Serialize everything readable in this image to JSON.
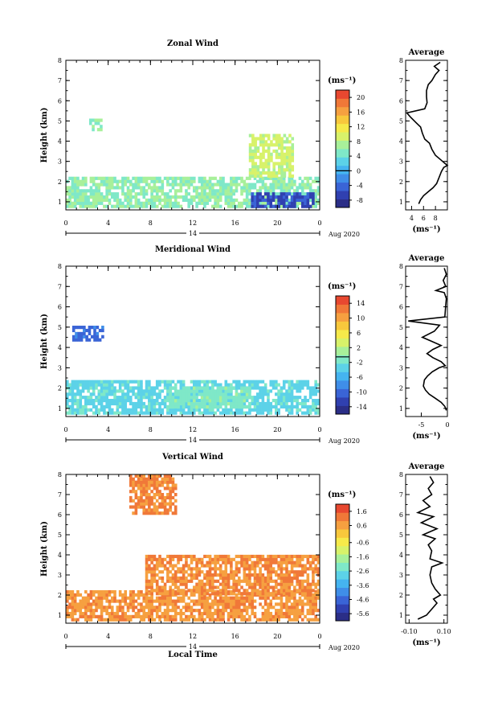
{
  "chart_data": [
    {
      "type": "heatmap",
      "title": "Zonal Wind",
      "ylabel": "Height (km)",
      "xlim": [
        0,
        24
      ],
      "ylim": [
        0.6,
        8
      ],
      "xticks": [
        "0",
        "4",
        "8",
        "12",
        "16",
        "20",
        "0"
      ],
      "yticks": [
        "1",
        "2",
        "3",
        "4",
        "5",
        "6",
        "7",
        "8"
      ],
      "date_label": "14",
      "month_label": "Aug 2020",
      "colorbar": {
        "unit": "(ms⁻¹)",
        "ticks": [
          "-8",
          "-4",
          "0",
          "4",
          "8",
          "12",
          "16",
          "20"
        ],
        "range": [
          -10,
          22
        ],
        "zero": 0
      },
      "profile": {
        "title": "Average",
        "xlim": [
          3,
          10
        ],
        "xticks": [
          "4",
          "6",
          "8"
        ],
        "xlabel": "(ms⁻¹)",
        "points": [
          [
            5.2,
            0.9
          ],
          [
            5.5,
            1.1
          ],
          [
            6.0,
            1.3
          ],
          [
            6.8,
            1.5
          ],
          [
            7.6,
            1.7
          ],
          [
            8.2,
            1.9
          ],
          [
            8.6,
            2.2
          ],
          [
            9.0,
            2.5
          ],
          [
            9.4,
            2.7
          ],
          [
            10.0,
            2.8
          ],
          [
            9.6,
            2.9
          ],
          [
            8.8,
            3.1
          ],
          [
            8.0,
            3.3
          ],
          [
            7.4,
            3.6
          ],
          [
            7.0,
            3.9
          ],
          [
            6.2,
            4.1
          ],
          [
            5.8,
            4.4
          ],
          [
            5.5,
            4.7
          ],
          [
            4.8,
            4.9
          ],
          [
            3.8,
            5.2
          ],
          [
            3.2,
            5.4
          ],
          [
            6.2,
            5.6
          ],
          [
            6.6,
            5.9
          ],
          [
            6.5,
            6.2
          ],
          [
            6.5,
            6.5
          ],
          [
            6.8,
            6.8
          ],
          [
            7.4,
            7.0
          ],
          [
            8.0,
            7.3
          ],
          [
            8.6,
            7.5
          ],
          [
            7.8,
            7.7
          ],
          [
            8.8,
            7.9
          ]
        ]
      },
      "series": [
        {
          "band": [
            0.7,
            2.2
          ],
          "x": [
            0,
            24
          ],
          "value": 6
        },
        {
          "band": [
            0.7,
            1.4
          ],
          "x": [
            17.5,
            23.5
          ],
          "value": -6
        },
        {
          "band": [
            4.5,
            5.1
          ],
          "x": [
            2.2,
            3.4
          ],
          "value": 6
        },
        {
          "band": [
            2.2,
            4.3
          ],
          "x": [
            17.3,
            21.5
          ],
          "value": 9
        }
      ]
    },
    {
      "type": "heatmap",
      "title": "Meridional Wind",
      "ylabel": "Height (km)",
      "xlim": [
        0,
        24
      ],
      "ylim": [
        0.6,
        8
      ],
      "xticks": [
        "0",
        "4",
        "8",
        "12",
        "16",
        "20",
        "0"
      ],
      "yticks": [
        "1",
        "2",
        "3",
        "4",
        "5",
        "6",
        "7",
        "8"
      ],
      "date_label": "14",
      "month_label": "Aug 2020",
      "colorbar": {
        "unit": "(ms⁻¹)",
        "ticks": [
          "-14",
          "-10",
          "-6",
          "-2",
          "2",
          "6",
          "10",
          "14"
        ],
        "range": [
          -16,
          16
        ],
        "zero": -0.5
      },
      "profile": {
        "title": "Average",
        "xlim": [
          -8,
          0
        ],
        "xticks": [
          "-5",
          "0"
        ],
        "xlabel": "(ms⁻¹)",
        "points": [
          [
            -0.2,
            0.9
          ],
          [
            -0.5,
            1.1
          ],
          [
            -1.2,
            1.3
          ],
          [
            -2.3,
            1.5
          ],
          [
            -3.5,
            1.7
          ],
          [
            -4.2,
            1.9
          ],
          [
            -4.6,
            2.1
          ],
          [
            -4.4,
            2.4
          ],
          [
            -3.8,
            2.6
          ],
          [
            -2.9,
            2.8
          ],
          [
            -1.6,
            3.0
          ],
          [
            -0.4,
            3.1
          ],
          [
            -1.2,
            3.3
          ],
          [
            -2.8,
            3.5
          ],
          [
            -3.9,
            3.7
          ],
          [
            -2.8,
            3.9
          ],
          [
            -1.2,
            4.1
          ],
          [
            -3.0,
            4.3
          ],
          [
            -4.8,
            4.5
          ],
          [
            -2.5,
            4.8
          ],
          [
            -1.5,
            5.1
          ],
          [
            -7.5,
            5.3
          ],
          [
            -0.5,
            5.5
          ],
          [
            -0.4,
            5.8
          ],
          [
            -0.3,
            6.1
          ],
          [
            -0.2,
            6.4
          ],
          [
            -0.6,
            6.7
          ],
          [
            -2.2,
            6.8
          ],
          [
            -0.3,
            7.0
          ],
          [
            -0.8,
            7.3
          ],
          [
            -0.2,
            7.6
          ],
          [
            -0.6,
            7.9
          ]
        ]
      },
      "series": [
        {
          "band": [
            0.7,
            2.3
          ],
          "x": [
            0,
            24
          ],
          "value": -3
        },
        {
          "band": [
            4.3,
            5.0
          ],
          "x": [
            0.6,
            3.4
          ],
          "value": -10
        },
        {
          "band": [
            1.0,
            2.0
          ],
          "x": [
            9.5,
            17.5
          ],
          "value": -1
        }
      ]
    },
    {
      "type": "heatmap",
      "title": "Vertical Wind",
      "xlabel": "Local Time",
      "ylabel": "Height (km)",
      "xlim": [
        0,
        24
      ],
      "ylim": [
        0.6,
        8
      ],
      "xticks": [
        "0",
        "4",
        "8",
        "12",
        "16",
        "20",
        "0"
      ],
      "yticks": [
        "1",
        "2",
        "3",
        "4",
        "5",
        "6",
        "7",
        "8"
      ],
      "date_label": "14",
      "month_label": "Aug 2020",
      "colorbar": {
        "unit": "(ms⁻¹)",
        "ticks": [
          "-5.6",
          "-4.6",
          "-3.6",
          "-2.6",
          "-1.6",
          "-0.6",
          "0.6",
          "1.6"
        ],
        "range": [
          -6.1,
          2.1
        ]
      },
      "profile": {
        "title": "Average",
        "xlim": [
          -0.12,
          0.12
        ],
        "xticks": [
          "-0.10",
          "0.10"
        ],
        "xlabel": "(ms⁻¹)",
        "points": [
          [
            -0.05,
            0.8
          ],
          [
            0.0,
            1.0
          ],
          [
            0.03,
            1.3
          ],
          [
            0.06,
            1.6
          ],
          [
            0.04,
            1.8
          ],
          [
            0.08,
            2.0
          ],
          [
            0.05,
            2.3
          ],
          [
            0.03,
            2.6
          ],
          [
            0.02,
            3.0
          ],
          [
            0.03,
            3.4
          ],
          [
            0.09,
            3.6
          ],
          [
            0.02,
            3.8
          ],
          [
            0.03,
            4.2
          ],
          [
            0.01,
            4.5
          ],
          [
            0.05,
            4.8
          ],
          [
            -0.02,
            5.0
          ],
          [
            0.06,
            5.3
          ],
          [
            -0.03,
            5.6
          ],
          [
            0.04,
            5.9
          ],
          [
            -0.05,
            6.1
          ],
          [
            0.02,
            6.4
          ],
          [
            -0.02,
            6.7
          ],
          [
            0.03,
            7.0
          ],
          [
            0.01,
            7.3
          ],
          [
            0.04,
            7.6
          ],
          [
            0.02,
            7.9
          ]
        ]
      },
      "series": [
        {
          "band": [
            0.7,
            2.1
          ],
          "x": [
            0,
            24
          ],
          "value": 0.8
        },
        {
          "band": [
            2.0,
            4.0
          ],
          "x": [
            7.5,
            24
          ],
          "value": 0.9
        },
        {
          "band": [
            6.0,
            8.0
          ],
          "x": [
            6.0,
            10.5
          ],
          "value": 1.0
        }
      ]
    }
  ]
}
